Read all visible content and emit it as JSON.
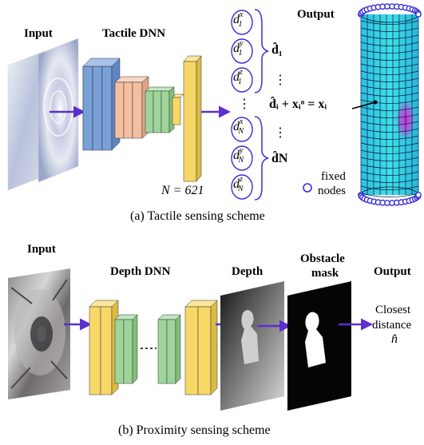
{
  "panel_a": {
    "input_label": "Input",
    "dnn_label": "Tactile DNN",
    "output_label": "Output",
    "components": [
      {
        "sym": "d",
        "sub": "1",
        "sup": "x"
      },
      {
        "sym": "d",
        "sub": "1",
        "sup": "y"
      },
      {
        "sym": "d",
        "sub": "1",
        "sup": "z"
      },
      {
        "sym": "d",
        "sub": "N",
        "sup": "x"
      },
      {
        "sym": "d",
        "sub": "N",
        "sup": "y"
      },
      {
        "sym": "d",
        "sub": "N",
        "sup": "z"
      }
    ],
    "vector_top": "d̂₁",
    "vector_bottom": "d̂N",
    "vdots": "⋮",
    "equation": "d̂ᵢ + xᵢᵒ = xᵢ",
    "n_equation": "N = 621",
    "fixed_nodes_line1": "fixed",
    "fixed_nodes_line2": "nodes",
    "caption": "(a) Tactile sensing scheme"
  },
  "panel_b": {
    "input_label": "Input",
    "dnn_label": "Depth DNN",
    "depth_label": "Depth",
    "mask_line1": "Obstacle",
    "mask_line2": "mask",
    "output_label": "Output",
    "closest_line1": "Closest",
    "closest_line2": "distance",
    "closest_symbol": "n̂",
    "caption": "(b) Proximity sensing scheme"
  },
  "colors": {
    "blue_layer": "#7aa0d8",
    "salmon_layer": "#f4bfa0",
    "green_layer": "#9fd59a",
    "yellow_layer": "#f7d766",
    "arrow": "#5b2fd0",
    "cylinder": "#33cfe6",
    "node_ring": "#3a2fd6"
  }
}
